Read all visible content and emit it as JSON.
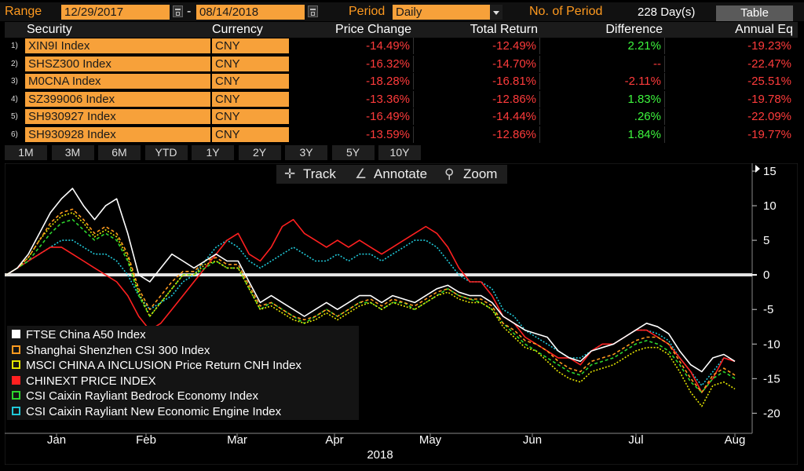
{
  "header": {
    "range_label": "Range",
    "start_date": "12/29/2017",
    "date_sep": "-",
    "end_date": "08/14/2018",
    "period_label": "Period",
    "period_value": "Daily",
    "no_of_period_label": "No. of Period",
    "no_of_period_value": "228 Day(s)",
    "table_button": "Table"
  },
  "table": {
    "columns": [
      "Security",
      "Currency",
      "Price Change",
      "Total Return",
      "Difference",
      "Annual Eq"
    ],
    "rows": [
      {
        "num": "1)",
        "security": "XIN9I Index",
        "currency": "CNY",
        "price_change": "-14.49%",
        "total_return": "-12.49%",
        "difference": "2.21%",
        "diff_color": "#3df53d",
        "annual": "-19.23%"
      },
      {
        "num": "2)",
        "security": "SHSZ300 Index",
        "currency": "CNY",
        "price_change": "-16.32%",
        "total_return": "-14.70%",
        "difference": "--",
        "diff_color": "#ff3b3b",
        "annual": "-22.47%"
      },
      {
        "num": "3)",
        "security": "M0CNA Index",
        "currency": "CNY",
        "price_change": "-18.28%",
        "total_return": "-16.81%",
        "difference": "-2.11%",
        "diff_color": "#ff3b3b",
        "annual": "-25.51%"
      },
      {
        "num": "4)",
        "security": "SZ399006 Index",
        "currency": "CNY",
        "price_change": "-13.36%",
        "total_return": "-12.86%",
        "difference": "1.83%",
        "diff_color": "#3df53d",
        "annual": "-19.78%"
      },
      {
        "num": "5)",
        "security": "SH930927 Index",
        "currency": "CNY",
        "price_change": "-16.49%",
        "total_return": "-14.44%",
        "difference": ".26%",
        "diff_color": "#3df53d",
        "annual": "-22.09%"
      },
      {
        "num": "6)",
        "security": "SH930928 Index",
        "currency": "CNY",
        "price_change": "-13.59%",
        "total_return": "-12.86%",
        "difference": "1.84%",
        "diff_color": "#3df53d",
        "annual": "-19.77%"
      }
    ]
  },
  "ranges": [
    "1M",
    "3M",
    "6M",
    "YTD",
    "1Y",
    "2Y",
    "3Y",
    "5Y",
    "10Y"
  ],
  "toolbar": {
    "track": "Track",
    "annotate": "Annotate",
    "zoom": "Zoom"
  },
  "colors": {
    "accent": "#f7a13a",
    "negative": "#ff3b3b",
    "positive": "#3df53d"
  },
  "chart_data": {
    "type": "line",
    "xlabel": "2018",
    "x_ticks": [
      "Jan",
      "Feb",
      "Mar",
      "Apr",
      "May",
      "Jun",
      "Jul",
      "Aug"
    ],
    "ylim": [
      -22,
      15
    ],
    "y_ticks": [
      15,
      10,
      5,
      0,
      -5,
      -10,
      -15,
      -20
    ],
    "zero_line": 0,
    "legend_position": "bottom-left",
    "series": [
      {
        "name": "FTSE China A50 Index",
        "color": "#ffffff",
        "dash": "none",
        "values": [
          0,
          1,
          3,
          6,
          9,
          11,
          12.5,
          10,
          8,
          10,
          11,
          6,
          0,
          -1,
          1,
          3,
          2,
          1,
          2,
          3,
          2,
          2,
          -1,
          -4,
          -3,
          -4,
          -5,
          -6,
          -5,
          -4,
          -5,
          -4,
          -3,
          -3,
          -4,
          -3,
          -3.5,
          -4,
          -3,
          -2,
          -1.5,
          -2.5,
          -3,
          -3,
          -4,
          -6,
          -7,
          -8,
          -8.5,
          -9,
          -11,
          -12,
          -12.5,
          -11,
          -10.5,
          -10,
          -9,
          -8,
          -7,
          -7.5,
          -8.5,
          -11,
          -13,
          -14,
          -12,
          -11.5,
          -12.5
        ]
      },
      {
        "name": "Shanghai Shenzhen CSI 300 Index",
        "color": "#ff9a1f",
        "dash": "4,3",
        "values": [
          0,
          1,
          2.5,
          5,
          7.5,
          9,
          9.5,
          8,
          6,
          7,
          6,
          3,
          -2,
          -5,
          -3,
          -1,
          0.5,
          0.5,
          2,
          2.5,
          1.5,
          1.5,
          -1.5,
          -4.5,
          -4,
          -5,
          -6,
          -6.5,
          -6,
          -5,
          -6,
          -5,
          -4,
          -3.5,
          -4.5,
          -3.5,
          -4,
          -4.5,
          -3.5,
          -2.5,
          -2,
          -3,
          -3.5,
          -3.5,
          -4.5,
          -7,
          -8,
          -9.5,
          -10,
          -11,
          -12.5,
          -13.5,
          -14,
          -12.5,
          -12,
          -11.5,
          -10.5,
          -9.5,
          -9,
          -9,
          -10,
          -12.5,
          -15,
          -17,
          -14.5,
          -13.5,
          -14.5
        ]
      },
      {
        "name": "MSCI CHINA A INCLUSION Price Return CNH Index",
        "color": "#e4e400",
        "dash": "2,2",
        "values": [
          0,
          1,
          2.5,
          5,
          7,
          8.5,
          9,
          7.5,
          5.5,
          6.5,
          5.5,
          2.5,
          -2.5,
          -6,
          -4,
          -2,
          0,
          0,
          1.5,
          2,
          1,
          1,
          -2,
          -5,
          -4.5,
          -5.5,
          -6.5,
          -7,
          -6.5,
          -5.5,
          -6.5,
          -5.5,
          -4.5,
          -4,
          -5,
          -4,
          -4.5,
          -5,
          -4,
          -3,
          -2.5,
          -3.5,
          -4,
          -4,
          -5,
          -7.5,
          -9,
          -10.5,
          -11,
          -12.5,
          -14,
          -15,
          -15.5,
          -14,
          -13.5,
          -13,
          -12,
          -11,
          -10.5,
          -10.5,
          -11.5,
          -14,
          -17,
          -19,
          -16,
          -15.5,
          -16.5
        ]
      },
      {
        "name": "CHINEXT PRICE INDEX",
        "color": "#ff2020",
        "dash": "none",
        "values": [
          0,
          1,
          2,
          3,
          4,
          4,
          3,
          2,
          1,
          0,
          -1,
          -3,
          -6,
          -8,
          -7,
          -5,
          -3,
          -1,
          1,
          3,
          5,
          6,
          3,
          2,
          4,
          7,
          8,
          6,
          5,
          4,
          5,
          4,
          5,
          4,
          3,
          4,
          5,
          6,
          7,
          6,
          4,
          1,
          -1,
          -1,
          -3,
          -6,
          -7,
          -9,
          -10,
          -11,
          -12,
          -12,
          -13,
          -11,
          -10,
          -10,
          -9,
          -8,
          -8,
          -9,
          -10,
          -12,
          -14,
          -17,
          -15,
          -12,
          -12.5
        ]
      },
      {
        "name": "CSI Caixin Rayliant Bedrock Economy Index",
        "color": "#2ed42e",
        "dash": "4,3",
        "values": [
          0,
          1,
          2,
          4,
          6,
          7.5,
          8,
          6.5,
          5,
          6,
          5,
          2,
          -3,
          -6,
          -4,
          -2,
          0,
          0,
          1,
          2,
          1,
          1,
          -2,
          -5,
          -4,
          -5,
          -6,
          -7,
          -6,
          -5,
          -6,
          -5,
          -4,
          -4,
          -5,
          -4,
          -4,
          -5,
          -4,
          -3,
          -2,
          -3,
          -3.5,
          -4,
          -5,
          -7,
          -8.5,
          -10,
          -11,
          -12,
          -13,
          -14,
          -14.5,
          -13,
          -12.5,
          -12,
          -11,
          -10,
          -9.5,
          -10,
          -11,
          -13,
          -15.5,
          -17,
          -15,
          -14,
          -15
        ]
      },
      {
        "name": "CSI Caixin Rayliant New Economic Engine Index",
        "color": "#20c8d8",
        "dash": "2,2",
        "values": [
          0,
          1,
          2,
          3,
          4,
          5,
          5,
          4,
          3,
          3,
          2,
          0,
          -3,
          -5,
          -4,
          -3,
          -1,
          0,
          2,
          4,
          5,
          4,
          2,
          1,
          2,
          3,
          4,
          3,
          2,
          2,
          3,
          2,
          3,
          3,
          2,
          3,
          4,
          5,
          5,
          4,
          2,
          0,
          -1,
          -1,
          -2,
          -5,
          -6,
          -8,
          -9,
          -10,
          -11,
          -12,
          -12,
          -11,
          -10,
          -10,
          -9,
          -8,
          -8,
          -8.5,
          -9.5,
          -12,
          -14,
          -16,
          -14,
          -12,
          -12.5
        ]
      }
    ]
  }
}
